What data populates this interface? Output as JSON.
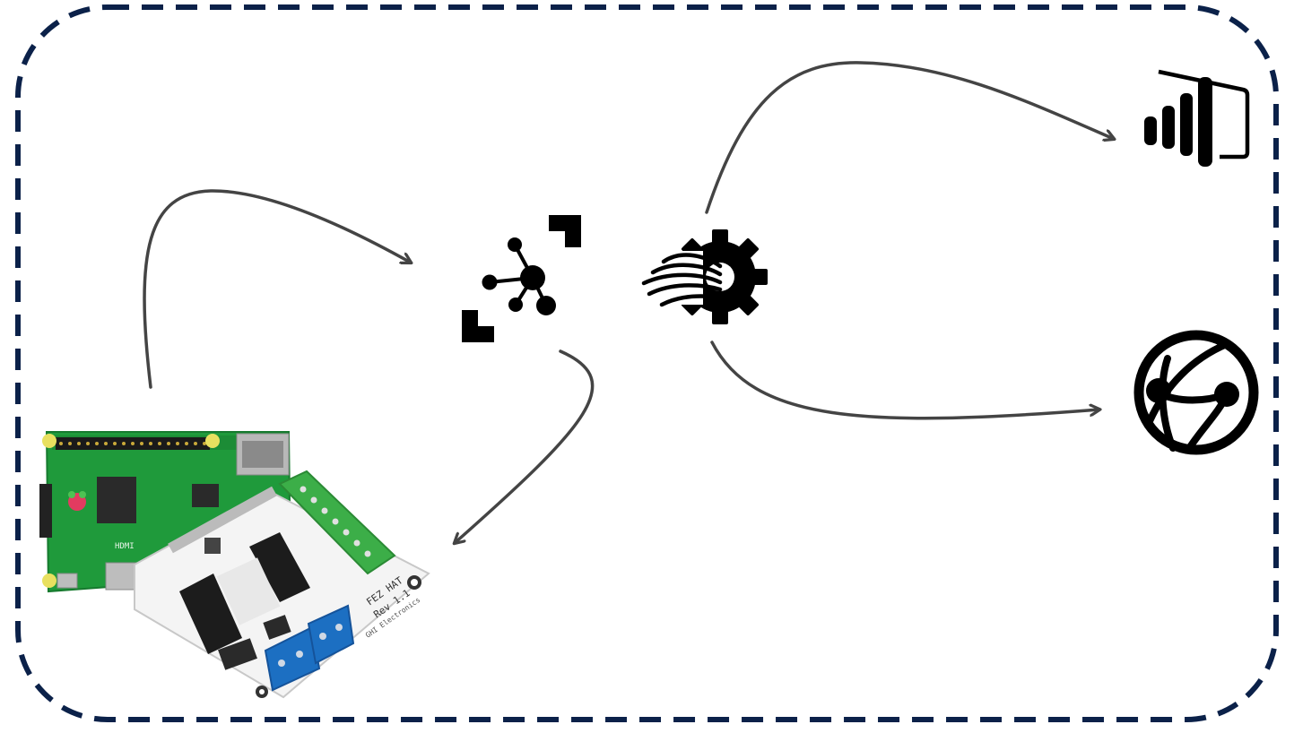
{
  "diagram": {
    "frame": {
      "style": "dashed",
      "color": "#0b2149"
    },
    "arrow_color": "#444444",
    "nodes": [
      {
        "id": "device",
        "icon": "raspberry-pi-fez-hat-board"
      },
      {
        "id": "hub",
        "icon": "iot-hub-icon"
      },
      {
        "id": "analytics",
        "icon": "stream-analytics-icon"
      },
      {
        "id": "dashboard",
        "icon": "power-bi-icon"
      },
      {
        "id": "web",
        "icon": "web-app-globe-icon"
      }
    ],
    "connections": [
      {
        "from": "device",
        "to": "hub"
      },
      {
        "from": "hub",
        "to": "device"
      },
      {
        "from": "analytics",
        "to": "dashboard"
      },
      {
        "from": "analytics",
        "to": "web"
      }
    ],
    "board_labels": {
      "fez_hat": "FEZ HAT",
      "rev": "Rev 1.1",
      "hdmi": "HDMI",
      "maker": "GHI Electronics"
    }
  }
}
